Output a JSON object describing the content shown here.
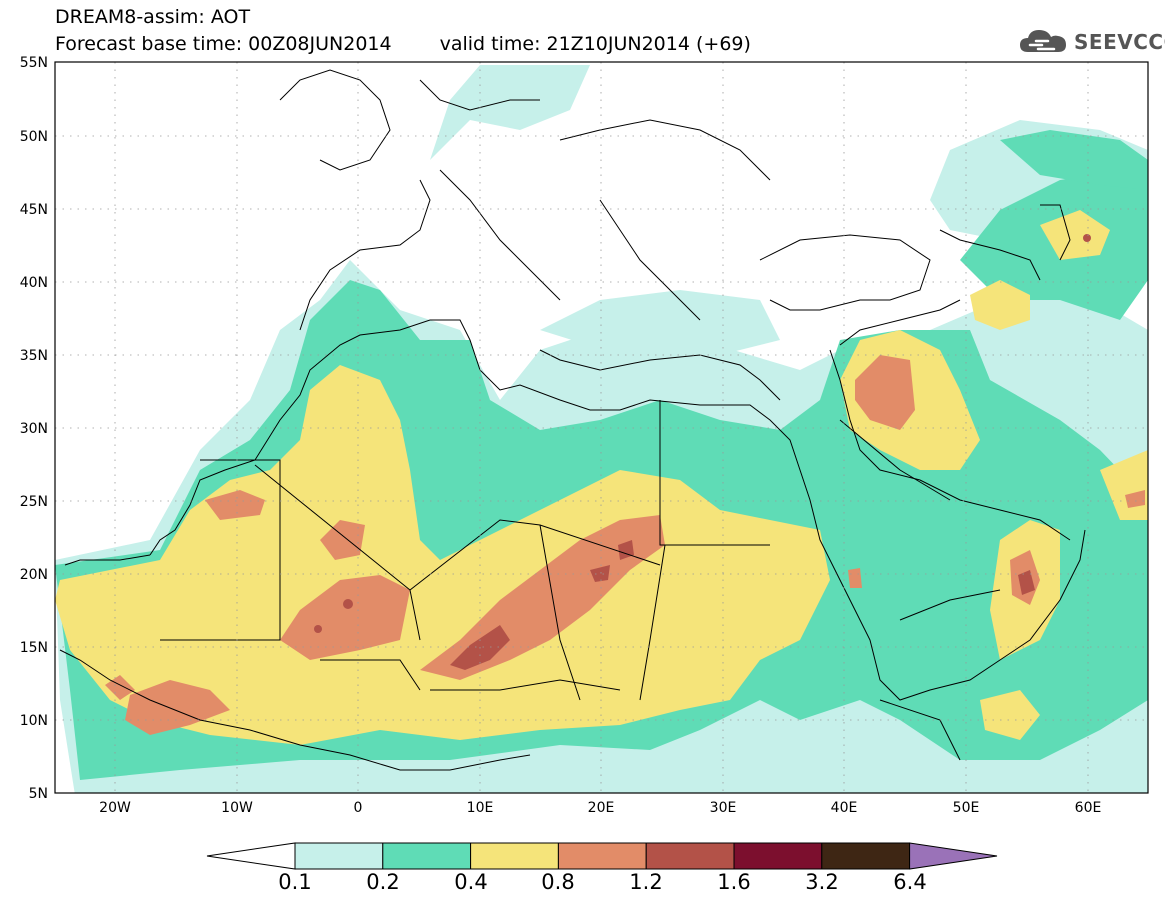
{
  "title": {
    "line1": "DREAM8-assim: AOT",
    "base_time": "Forecast base time: 00Z08JUN2014",
    "valid_time": "valid time: 21Z10JUN2014 (+69)"
  },
  "logo": {
    "icon": "cloud-icon",
    "text": "SEEVCCC"
  },
  "map": {
    "lat_ticks": [
      "55N",
      "50N",
      "45N",
      "40N",
      "35N",
      "30N",
      "25N",
      "20N",
      "15N",
      "10N",
      "5N"
    ],
    "lon_ticks": [
      "20W",
      "10W",
      "0",
      "10E",
      "20E",
      "30E",
      "40E",
      "50E",
      "60E"
    ],
    "lon_range": [
      -25,
      65
    ],
    "lat_range": [
      5,
      55
    ]
  },
  "colorbar": {
    "labels": [
      "0.1",
      "0.2",
      "0.4",
      "0.8",
      "1.2",
      "1.6",
      "3.2",
      "6.4"
    ],
    "colors": [
      "#c6f0ea",
      "#5fdcb6",
      "#f5e47a",
      "#e28c68",
      "#b35248",
      "#7c0f2e",
      "#3e2614",
      "#9a72b8"
    ],
    "under_color": "#ffffff"
  }
}
